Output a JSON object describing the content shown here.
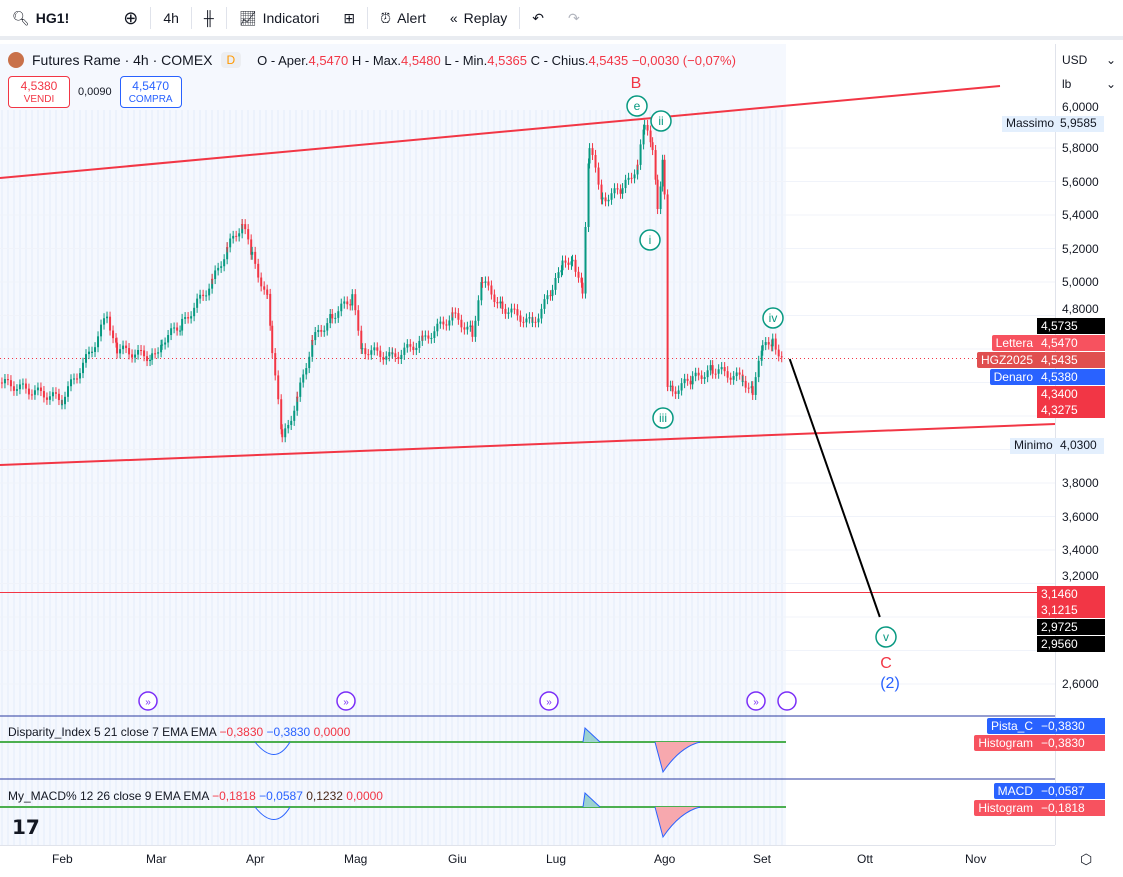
{
  "toolbar": {
    "symbol": "HG1!",
    "interval": "4h",
    "indicators": "Indicatori",
    "alert": "Alert",
    "replay": "Replay"
  },
  "legend": {
    "title": "Futures Rame · 4h · COMEX",
    "d_badge": "D",
    "o_label": "O - Aper.",
    "o": "4,5470",
    "h_label": "H - Max.",
    "h": "4,5480",
    "l_label": "L - Min.",
    "l": "4,5365",
    "c_label": "C - Chius.",
    "c": "4,5435",
    "change": "−0,0030 (−0,07%)"
  },
  "trade": {
    "sell_price": "4,5380",
    "sell_label": "VENDI",
    "spread": "0,0090",
    "buy_price": "4,5470",
    "buy_label": "COMPRA"
  },
  "axis": {
    "currency": "USD",
    "unit": "lb",
    "ticks": [
      "6,0000",
      "5,8000",
      "5,6000",
      "5,4000",
      "5,2000",
      "5,0000",
      "4,8000",
      "3,8000",
      "3,6000",
      "3,4000",
      "3,2000",
      "2,6000"
    ],
    "max_label": "Massimo",
    "max": "5,9585",
    "min_label": "Minimo",
    "min": "4,0300",
    "p1": "4,5735",
    "ask_label": "Lettera",
    "ask": "4,5470",
    "sym_label": "HGZ2025",
    "last": "4,5435",
    "bid_label": "Denaro",
    "bid": "4,5380",
    "p2": "4,3400",
    "p3": "4,3275",
    "p4": "3,1460",
    "p5": "3,1215",
    "p6": "2,9725",
    "p7": "2,9560"
  },
  "waves": {
    "B": "B",
    "e": "e",
    "ii": "ii",
    "i": "i",
    "iii": "iii",
    "iv": "iv",
    "v": "v",
    "C": "C",
    "two": "(2)"
  },
  "ind1": {
    "name": "Disparity_Index 5 21 close 7 EMA EMA",
    "v1": "−0,3830",
    "v2": "−0,3830",
    "v3": "0,0000",
    "tag1": "Pista_C",
    "tag1v": "−0,3830",
    "tag2": "Histogram",
    "tag2v": "−0,3830"
  },
  "ind2": {
    "name": "My_MACD% 12 26 close 9 EMA EMA",
    "v1": "−0,1818",
    "v2": "−0,0587",
    "v3": "0,1232",
    "v4": "0,0000",
    "tag1": "MACD",
    "tag1v": "−0,0587",
    "tag2": "Histogram",
    "tag2v": "−0,1818"
  },
  "time_axis": [
    "Feb",
    "Mar",
    "Apr",
    "Mag",
    "Giu",
    "Lug",
    "Ago",
    "Set",
    "Ott",
    "Nov"
  ],
  "colors": {
    "up": "#089981",
    "down": "#f23645",
    "accent": "#2962ff",
    "trend": "#f23645"
  },
  "chart_data": {
    "type": "line",
    "ylabel": "USD/lb",
    "ylim": [
      2.5,
      6.1
    ],
    "x_unit": "months since Feb",
    "close": [
      [
        -0.6,
        4.4
      ],
      [
        0,
        4.3
      ],
      [
        0.3,
        4.6
      ],
      [
        0.45,
        4.8
      ],
      [
        0.55,
        4.6
      ],
      [
        0.9,
        4.55
      ],
      [
        1.0,
        4.65
      ],
      [
        1.2,
        4.75
      ],
      [
        1.5,
        5.0
      ],
      [
        1.65,
        5.2
      ],
      [
        1.8,
        5.35
      ],
      [
        1.9,
        5.15
      ],
      [
        2.05,
        4.9
      ],
      [
        2.1,
        4.6
      ],
      [
        2.2,
        4.05
      ],
      [
        2.35,
        4.3
      ],
      [
        2.5,
        4.65
      ],
      [
        2.7,
        4.8
      ],
      [
        2.9,
        4.9
      ],
      [
        3.0,
        4.6
      ],
      [
        3.3,
        4.55
      ],
      [
        3.6,
        4.65
      ],
      [
        3.9,
        4.8
      ],
      [
        4.1,
        4.7
      ],
      [
        4.2,
        5.0
      ],
      [
        4.4,
        4.85
      ],
      [
        4.7,
        4.75
      ],
      [
        4.9,
        4.95
      ],
      [
        5.0,
        5.1
      ],
      [
        5.1,
        5.15
      ],
      [
        5.2,
        4.95
      ],
      [
        5.27,
        5.8
      ],
      [
        5.4,
        5.5
      ],
      [
        5.6,
        5.55
      ],
      [
        5.75,
        5.7
      ],
      [
        5.82,
        5.92
      ],
      [
        5.9,
        5.8
      ],
      [
        5.95,
        5.45
      ],
      [
        6.0,
        5.7
      ],
      [
        6.02,
        5.55
      ],
      [
        6.05,
        4.4
      ],
      [
        6.1,
        4.35
      ],
      [
        6.3,
        4.42
      ],
      [
        6.5,
        4.48
      ],
      [
        6.8,
        4.42
      ],
      [
        6.9,
        4.35
      ],
      [
        7.0,
        4.6
      ],
      [
        7.1,
        4.65
      ],
      [
        7.2,
        4.54
      ]
    ],
    "projection": [
      [
        7.27,
        4.54
      ],
      [
        8.17,
        3.0
      ]
    ],
    "hline": 3.146
  }
}
